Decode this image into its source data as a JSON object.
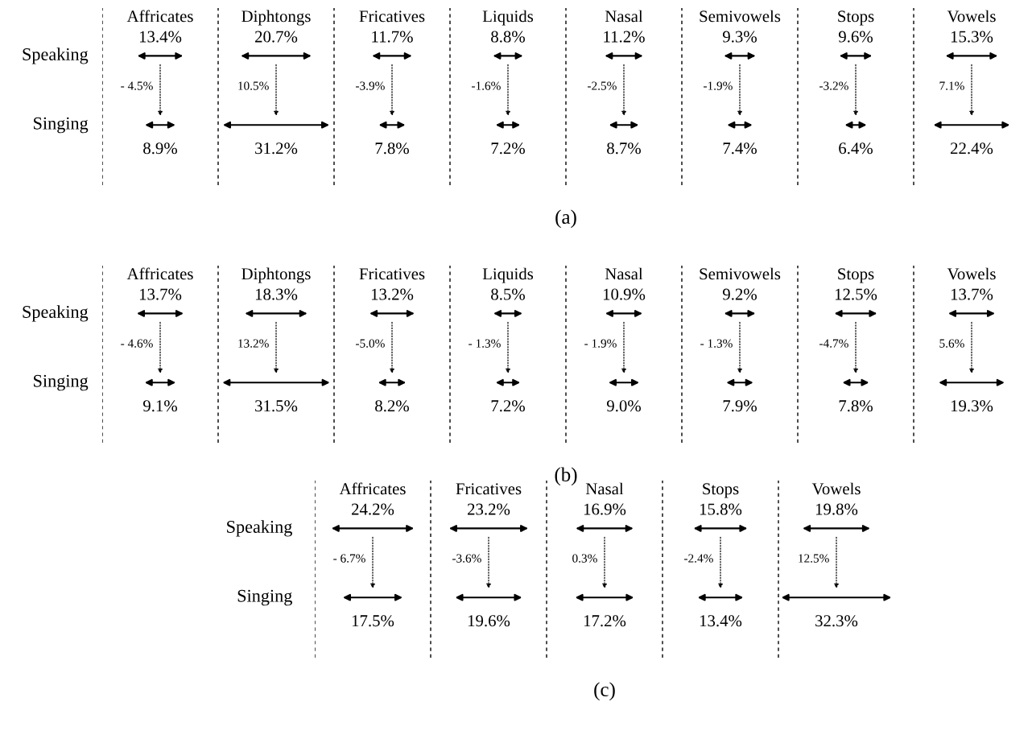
{
  "chart_data": [
    {
      "type": "other",
      "title": "(a)",
      "categories": [
        "Affricates",
        "Diphtongs",
        "Fricatives",
        "Liquids",
        "Nasal",
        "Semivowels",
        "Stops",
        "Vowels"
      ],
      "series": [
        {
          "name": "Speaking",
          "color": "#000000",
          "values": [
            13.4,
            20.7,
            11.7,
            8.8,
            11.2,
            9.3,
            9.6,
            15.3
          ],
          "value_labels": [
            "13.4%",
            "20.7%",
            "11.7%",
            "8.8%",
            "11.2%",
            "9.3%",
            "9.6%",
            "15.3%"
          ]
        },
        {
          "name": "Singing",
          "color": "#000000",
          "values": [
            8.9,
            31.2,
            7.8,
            7.2,
            8.7,
            7.4,
            6.4,
            22.4
          ],
          "value_labels": [
            "8.9%",
            "31.2%",
            "7.8%",
            "7.2%",
            "8.7%",
            "7.4%",
            "6.4%",
            "22.4%"
          ]
        }
      ],
      "annotations": [
        "- 4.5%",
        "10.5%",
        "-3.9%",
        "-1.6%",
        "-2.5%",
        "-1.9%",
        "-3.2%",
        "7.1%"
      ]
    },
    {
      "type": "other",
      "title": "(b)",
      "categories": [
        "Affricates",
        "Diphtongs",
        "Fricatives",
        "Liquids",
        "Nasal",
        "Semivowels",
        "Stops",
        "Vowels"
      ],
      "series": [
        {
          "name": "Speaking",
          "color": "#000000",
          "values": [
            13.7,
            18.3,
            13.2,
            8.5,
            10.9,
            9.2,
            12.5,
            13.7
          ],
          "value_labels": [
            "13.7%",
            "18.3%",
            "13.2%",
            "8.5%",
            "10.9%",
            "9.2%",
            "12.5%",
            "13.7%"
          ]
        },
        {
          "name": "Singing",
          "color": "#000000",
          "values": [
            9.1,
            31.5,
            8.2,
            7.2,
            9.0,
            7.9,
            7.8,
            19.3
          ],
          "value_labels": [
            "9.1%",
            "31.5%",
            "8.2%",
            "7.2%",
            "9.0%",
            "7.9%",
            "7.8%",
            "19.3%"
          ]
        }
      ],
      "annotations": [
        "- 4.6%",
        "13.2%",
        "-5.0%",
        "- 1.3%",
        "- 1.9%",
        "- 1.3%",
        "-4.7%",
        "5.6%"
      ]
    },
    {
      "type": "other",
      "title": "(c)",
      "categories": [
        "Affricates",
        "Fricatives",
        "Nasal",
        "Stops",
        "Vowels"
      ],
      "series": [
        {
          "name": "Speaking",
          "color": "#000000",
          "values": [
            24.2,
            23.2,
            16.9,
            15.8,
            19.8
          ],
          "value_labels": [
            "24.2%",
            "23.2%",
            "16.9%",
            "15.8%",
            "19.8%"
          ]
        },
        {
          "name": "Singing",
          "color": "#000000",
          "values": [
            17.5,
            19.6,
            17.2,
            13.4,
            32.3
          ],
          "value_labels": [
            "17.5%",
            "19.6%",
            "17.2%",
            "13.4%",
            "32.3%"
          ]
        }
      ],
      "annotations": [
        "- 6.7%",
        "-3.6%",
        "0.3%",
        "-2.4%",
        "12.5%"
      ]
    }
  ]
}
